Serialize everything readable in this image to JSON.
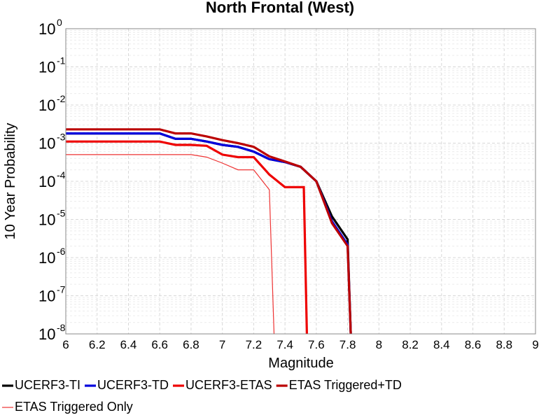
{
  "chart_data": {
    "type": "line",
    "title": "North Frontal  (West)",
    "xlabel": "Magnitude",
    "ylabel": "10 Year Probability",
    "xlim": [
      6,
      9
    ],
    "ylim": [
      1e-08,
      1
    ],
    "yscale": "log",
    "grid": true,
    "legend_position": "bottom",
    "xticks": [
      "6",
      "6.2",
      "6.4",
      "6.6",
      "6.8",
      "7",
      "7.2",
      "7.4",
      "7.6",
      "7.8",
      "8",
      "8.2",
      "8.4",
      "8.6",
      "8.8",
      "9"
    ],
    "yticks": [
      {
        "base": "10",
        "exp": "0"
      },
      {
        "base": "10",
        "exp": "-1"
      },
      {
        "base": "10",
        "exp": "-2"
      },
      {
        "base": "10",
        "exp": "-3"
      },
      {
        "base": "10",
        "exp": "-4"
      },
      {
        "base": "10",
        "exp": "-5"
      },
      {
        "base": "10",
        "exp": "-6"
      },
      {
        "base": "10",
        "exp": "-7"
      },
      {
        "base": "10",
        "exp": "-8"
      }
    ],
    "series": [
      {
        "name": "UCERF3-TI",
        "color": "#000000",
        "width": 3.2,
        "x": [
          6.0,
          6.6,
          6.7,
          6.8,
          6.9,
          7.0,
          7.1,
          7.2,
          7.3,
          7.4,
          7.5,
          7.6,
          7.7,
          7.8,
          7.82
        ],
        "y": [
          0.0018,
          0.0018,
          0.0013,
          0.0013,
          0.0011,
          0.0009,
          0.0008,
          0.0006,
          0.00038,
          0.00032,
          0.00024,
          0.0001,
          1.2e-05,
          3e-06,
          1e-08
        ]
      },
      {
        "name": "UCERF3-TD",
        "color": "#0000dd",
        "width": 3.2,
        "x": [
          6.0,
          6.6,
          6.7,
          6.8,
          6.9,
          7.0,
          7.1,
          7.2,
          7.3,
          7.4,
          7.5,
          7.6,
          7.7,
          7.8,
          7.82
        ],
        "y": [
          0.0018,
          0.0018,
          0.0013,
          0.0013,
          0.0011,
          0.0009,
          0.0008,
          0.0006,
          0.00038,
          0.00032,
          0.00024,
          0.0001,
          9e-06,
          2.2e-06,
          1e-08
        ]
      },
      {
        "name": "UCERF3-ETAS",
        "color": "#ee0000",
        "width": 3.2,
        "x": [
          6.0,
          6.6,
          6.7,
          6.8,
          6.9,
          7.0,
          7.1,
          7.2,
          7.3,
          7.4,
          7.5,
          7.52,
          7.54
        ],
        "y": [
          0.0011,
          0.0011,
          0.0009,
          0.0009,
          0.00085,
          0.0005,
          0.00043,
          0.00043,
          0.00015,
          7e-05,
          7e-05,
          7e-05,
          1e-08
        ]
      },
      {
        "name": "ETAS Triggered+TD",
        "color": "#bb0000",
        "width": 3.2,
        "x": [
          6.0,
          6.6,
          6.7,
          6.8,
          6.9,
          7.0,
          7.1,
          7.2,
          7.3,
          7.4,
          7.5,
          7.6,
          7.7,
          7.8,
          7.82
        ],
        "y": [
          0.0023,
          0.0023,
          0.0018,
          0.0018,
          0.0015,
          0.0012,
          0.001,
          0.0008,
          0.00045,
          0.00033,
          0.00024,
          0.0001,
          8e-06,
          2e-06,
          1e-08
        ]
      },
      {
        "name": "ETAS Triggered Only",
        "color": "#ee3333",
        "width": 1.2,
        "x": [
          6.0,
          6.6,
          6.7,
          6.8,
          6.9,
          7.0,
          7.1,
          7.2,
          7.3,
          7.33
        ],
        "y": [
          0.0005,
          0.0005,
          0.0005,
          0.0005,
          0.00043,
          0.0003,
          0.0002,
          0.0002,
          6e-05,
          1e-08
        ]
      }
    ]
  }
}
